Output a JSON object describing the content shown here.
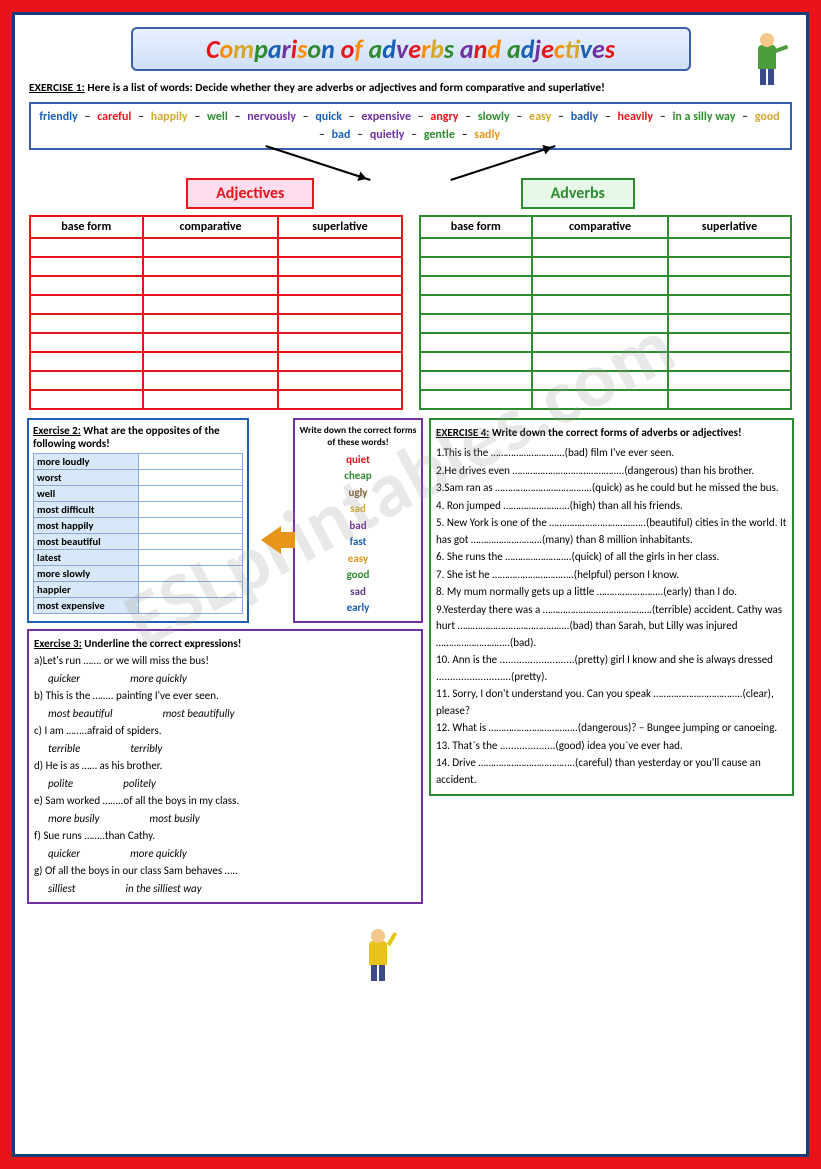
{
  "title_letters": [
    "C",
    "o",
    "m",
    "p",
    "a",
    "r",
    "i",
    "s",
    "o"
  ],
  "title_rest": "n of adverbs and adjectives",
  "title_rest_colors": [
    "#1a5fb4",
    "#7030a0",
    "#e8141a",
    "#ff8c00",
    "#d4a82a",
    "#2e8b2e",
    "#1a5fb4",
    "#7030a0",
    "#e8141a",
    "#ff8c00",
    "#d4a82a",
    "#2e8b2e",
    "#1a5fb4",
    "#7030a0",
    "#e8141a",
    "#ff8c00",
    "#d4a82a",
    "#2e8b2e",
    "#1a5fb4",
    "#7030a0",
    "#e8141a",
    "#ff8c00",
    "#d4a82a",
    "#2e8b2e",
    "#1a5fb4",
    "#7030a0",
    "#e8141a"
  ],
  "ex1": {
    "label": "EXERCISE 1:",
    "text": " Here is a list of words: Decide whether they are adverbs or adjectives  and form comparative and superlative!"
  },
  "words": [
    {
      "t": "friendly",
      "c": "#1a5fb4"
    },
    {
      "t": "careful",
      "c": "#e8141a"
    },
    {
      "t": "happily",
      "c": "#d4a82a"
    },
    {
      "t": "well",
      "c": "#2e8b2e"
    },
    {
      "t": "nervously",
      "c": "#7030a0"
    },
    {
      "t": "quick",
      "c": "#1a5fb4"
    },
    {
      "t": "expensive",
      "c": "#7030a0"
    },
    {
      "t": "angry",
      "c": "#e8141a"
    },
    {
      "t": "slowly",
      "c": "#2e8b2e"
    },
    {
      "t": "easy",
      "c": "#d4a82a"
    },
    {
      "t": "badly",
      "c": "#1a5fb4"
    },
    {
      "t": "heavily",
      "c": "#e8141a"
    },
    {
      "t": "in a silly way",
      "c": "#2e8b2e"
    },
    {
      "t": "good",
      "c": "#d4a82a"
    },
    {
      "t": "bad",
      "c": "#1a5fb4"
    },
    {
      "t": "quietly",
      "c": "#7030a0"
    },
    {
      "t": "gentle",
      "c": "#2e8b2e"
    },
    {
      "t": "sadly",
      "c": "#e8941a"
    }
  ],
  "sep": " – ",
  "label_adj": "Adjectives",
  "label_adv": "Adverbs",
  "table_headers": [
    "base form",
    "comparative",
    "superlative"
  ],
  "table_rows": 9,
  "ex2": {
    "label": "Exercise 2:",
    "text": " What are the opposites of the following words!",
    "items": [
      "more loudly",
      "worst",
      "well",
      "most difficult",
      "most happily",
      "most beautiful",
      "latest",
      "more slowly",
      "happier",
      "most expensive"
    ]
  },
  "ex2b": {
    "title": "Write down the correct forms of these words!",
    "words": [
      {
        "t": "quiet",
        "c": "#e8141a"
      },
      {
        "t": "cheap",
        "c": "#2e8b2e"
      },
      {
        "t": "ugly",
        "c": "#7a5a2a"
      },
      {
        "t": "sad",
        "c": "#d4a82a"
      },
      {
        "t": "bad",
        "c": "#7030a0"
      },
      {
        "t": "fast",
        "c": "#1a5fb4"
      },
      {
        "t": "easy",
        "c": "#e8941a"
      },
      {
        "t": "good",
        "c": "#2e8b2e"
      },
      {
        "t": "sad",
        "c": "#5a3a8a"
      },
      {
        "t": "early",
        "c": "#1a5fb4"
      }
    ]
  },
  "ex3": {
    "label": "Exercise 3:",
    "text": "   Underline  the correct expressions!",
    "items": [
      {
        "q": "a)Let's run ……. or we will miss the bus!",
        "o": [
          "quicker",
          "more quickly"
        ]
      },
      {
        "q": "b) This is the …….. painting I've ever seen.",
        "o": [
          "most beautiful",
          "most beautifully"
        ]
      },
      {
        "q": "c) I am ……..afraid of spiders.",
        "o": [
          "terrible",
          "terribly"
        ]
      },
      {
        "q": "d) He is as ……   as  his brother.",
        "o": [
          "polite",
          "politely"
        ]
      },
      {
        "q": " e) Sam worked ……..of all the boys in my class.",
        "o": [
          "more busily",
          "most busily"
        ]
      },
      {
        "q": "f) Sue runs ……..than Cathy.",
        "o": [
          "quicker",
          "more quickly"
        ]
      },
      {
        "q": "g) Of all the boys in our class Sam behaves …..",
        "o": [
          "silliest",
          "in the silliest way"
        ]
      }
    ]
  },
  "ex4": {
    "label": "EXERCISE 4:",
    "text": " Write down the correct forms of adverbs or adjectives!",
    "items": [
      "1.This is the ………………………..(bad) film I've ever seen.",
      "2.He drives even ……………………………………..(dangerous) than his brother.",
      "3.Sam ran as ………………………………..(quick) as he could but he missed the bus.",
      "4. Ron jumped ……………………..(high) than all his friends.",
      "5. New York is one of the ………………………………..(beautiful) cities in the world. It has got  ……………………….(many) than 8 million inhabitants.",
      "6. She runs the ……………………..(quick) of all the girls in her class.",
      "7. She ist he …………………………..(helpful) person I know.",
      "8. My mum normally gets up a little ……………………..(early) than I do.",
      "9.Yesterday there was a …………………………………….(terrible) accident. Cathy was hurt ……………………………………..(bad) than Sarah, but Lilly was injured ………………………..(bad).",
      "10. Ann is the ...........................(pretty) girl I know and she is always dressed ...........................(pretty).",
      "11. Sorry, I don't understand you. Can you speak ……………………………..(clear), please?",
      "12. What is ……………………………..(dangerous)? – Bungee jumping or canoeing.",
      "13. That`s the ....................(good) idea you`ve ever had.",
      "14. Drive ………………………………..(careful) than yesterday or you'll cause an accident."
    ]
  },
  "watermark": "ESLprintables.com"
}
